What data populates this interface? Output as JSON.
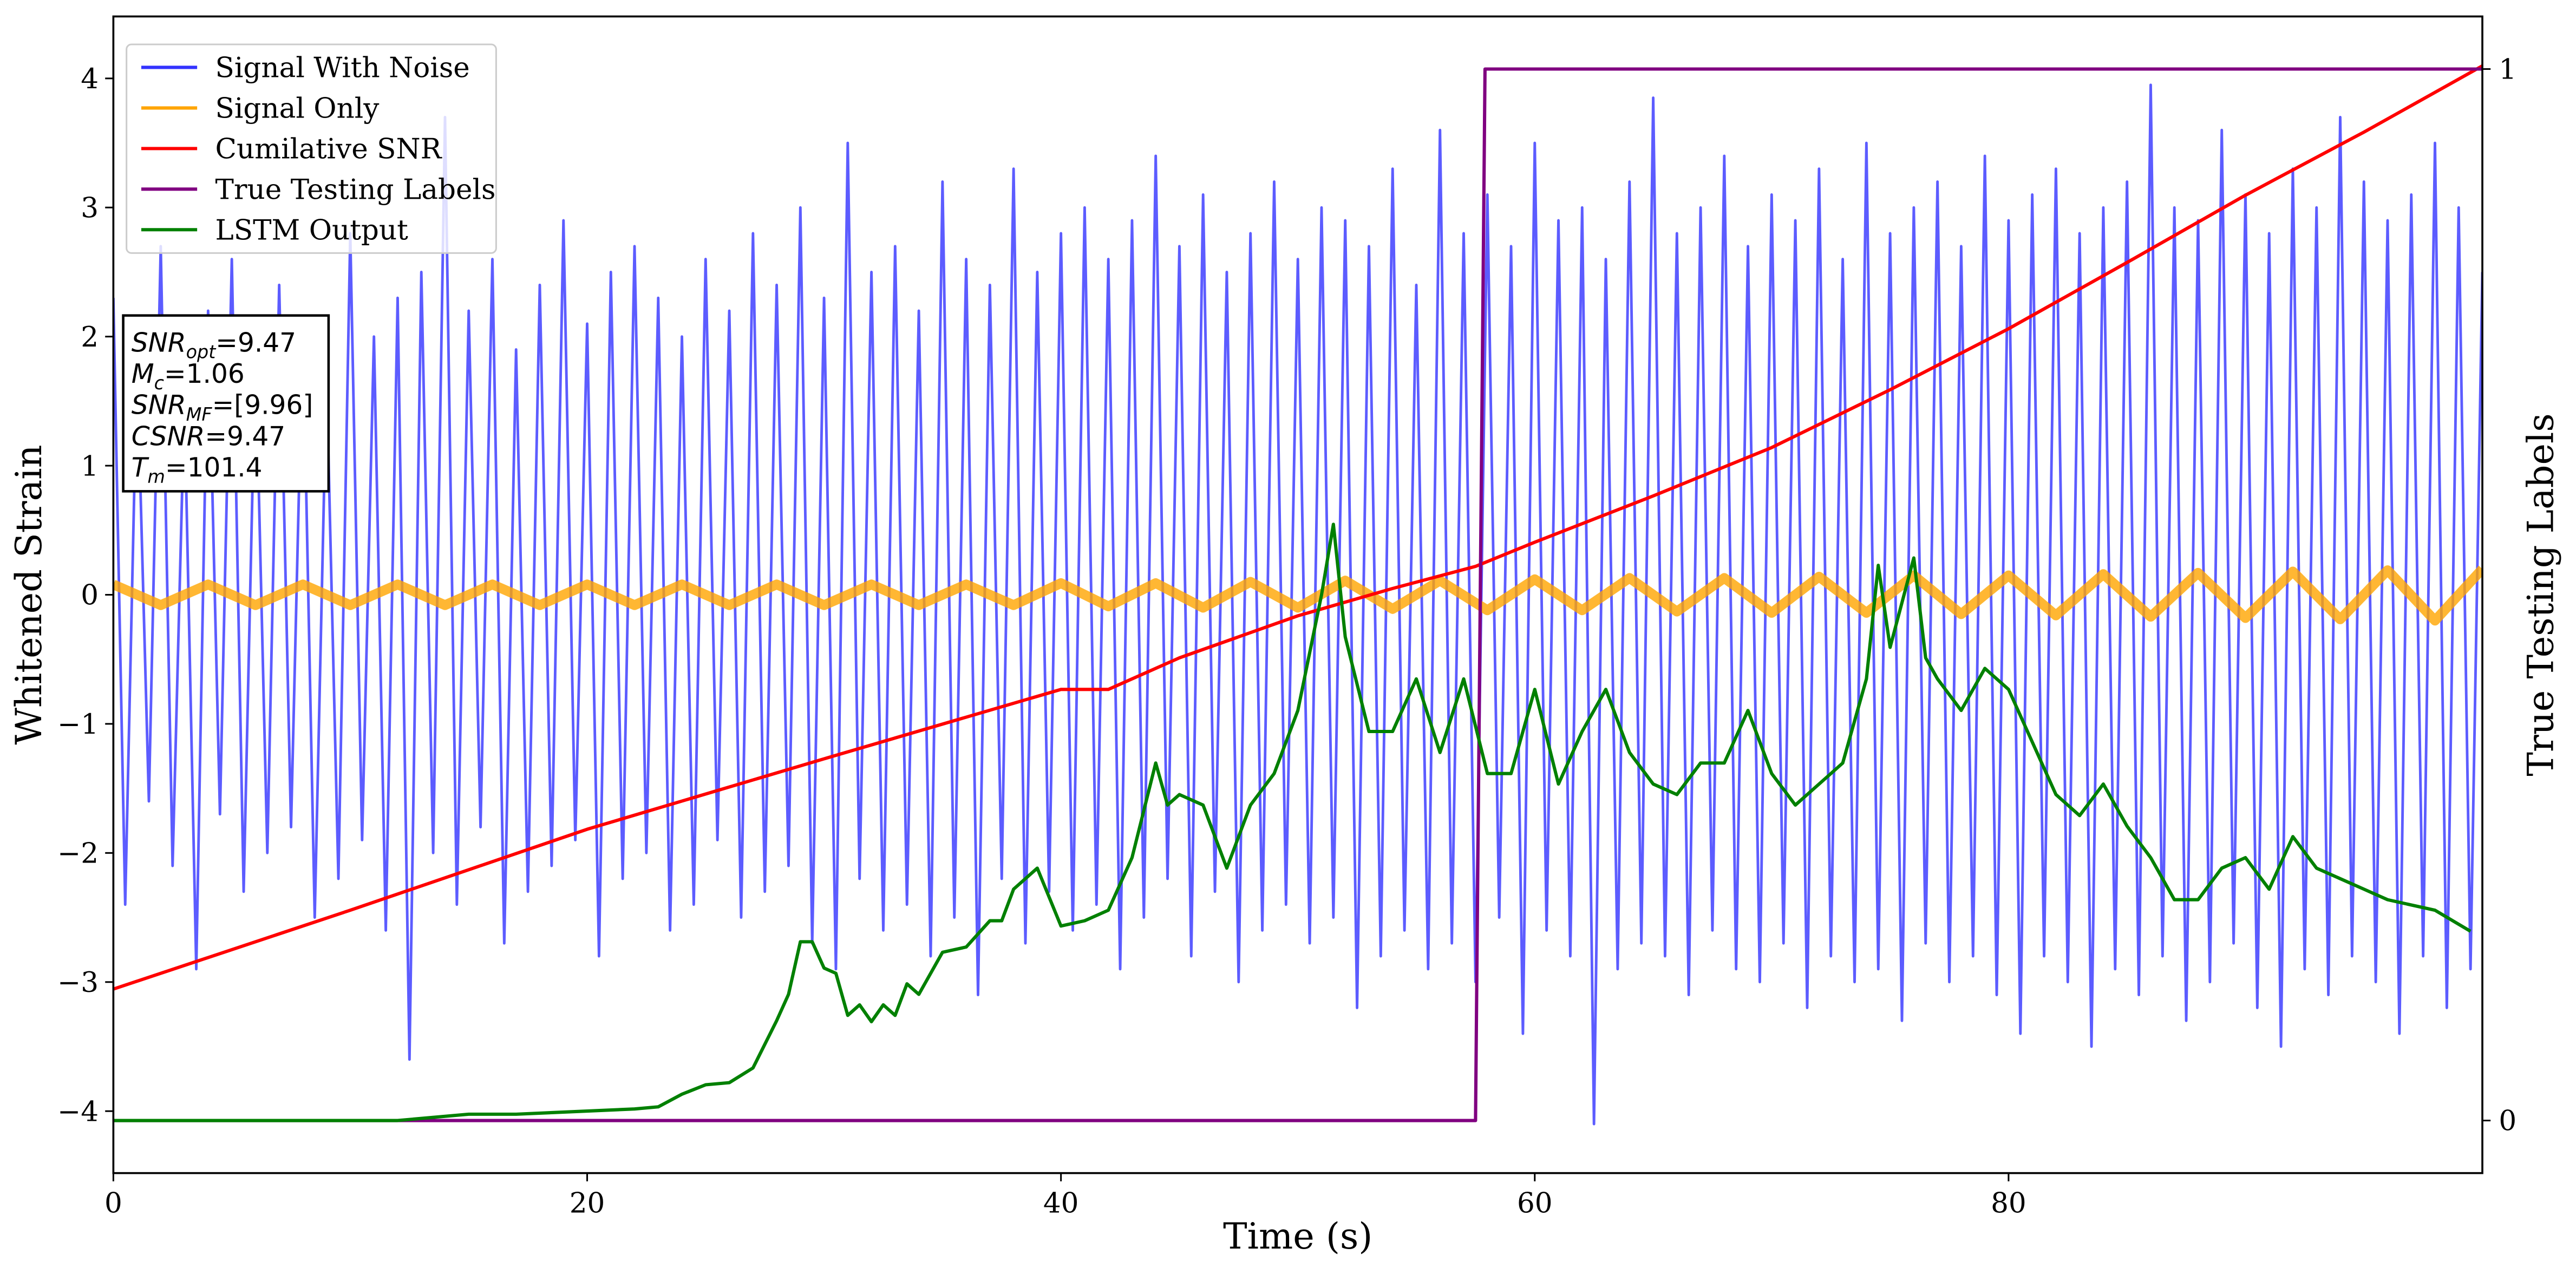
{
  "chart_data": {
    "type": "line",
    "xlabel": "Time (s)",
    "ylabel": "Whitened Strain",
    "y2label": "True Testing Labels",
    "xlim": [
      0,
      100
    ],
    "xticks": [
      0,
      20,
      40,
      60,
      80
    ],
    "ylim": [
      -4.48,
      4.48
    ],
    "yticks": [
      {
        "value": -4,
        "label": "−4"
      },
      {
        "value": -3,
        "label": "−3"
      },
      {
        "value": -2,
        "label": "−2"
      },
      {
        "value": -1,
        "label": "−1"
      },
      0,
      1,
      2,
      3,
      4
    ],
    "y2lim": [
      -0.05,
      1.05
    ],
    "y2ticks": [
      0,
      1
    ],
    "legend": "upper left",
    "annotation": [
      {
        "name": "SNR",
        "sub": "opt",
        "text": "=9.47"
      },
      {
        "name": "M",
        "sub": "c",
        "text": "=1.06"
      },
      {
        "name": "SNR",
        "sub": "MF",
        "text": "=[9.96]"
      },
      {
        "name": "CSNR",
        "sub": "",
        "text": "=9.47"
      },
      {
        "name": "T",
        "sub": "m",
        "text": "=101.4"
      }
    ],
    "series": [
      {
        "name": "Signal With Noise",
        "color": "#3333ff",
        "x": [
          0,
          0.5,
          1,
          1.5,
          2,
          2.5,
          3,
          3.5,
          4,
          4.5,
          5,
          5.5,
          6,
          6.5,
          7,
          7.5,
          8,
          8.5,
          9,
          9.5,
          10,
          10.5,
          11,
          11.5,
          12,
          12.5,
          13,
          13.5,
          14,
          14.5,
          15,
          15.5,
          16,
          16.5,
          17,
          17.5,
          18,
          18.5,
          19,
          19.5,
          20,
          20.5,
          21,
          21.5,
          22,
          22.5,
          23,
          23.5,
          24,
          24.5,
          25,
          25.5,
          26,
          26.5,
          27,
          27.5,
          28,
          28.5,
          29,
          29.5,
          30,
          30.5,
          31,
          31.5,
          32,
          32.5,
          33,
          33.5,
          34,
          34.5,
          35,
          35.5,
          36,
          36.5,
          37,
          37.5,
          38,
          38.5,
          39,
          39.5,
          40,
          40.5,
          41,
          41.5,
          42,
          42.5,
          43,
          43.5,
          44,
          44.5,
          45,
          45.5,
          46,
          46.5,
          47,
          47.5,
          48,
          48.5,
          49,
          49.5,
          50,
          50.5,
          51,
          51.5,
          52,
          52.5,
          53,
          53.5,
          54,
          54.5,
          55,
          55.5,
          56,
          56.5,
          57,
          57.5,
          58,
          58.5,
          59,
          59.5,
          60,
          60.5,
          61,
          61.5,
          62,
          62.5,
          63,
          63.5,
          64,
          64.5,
          65,
          65.5,
          66,
          66.5,
          67,
          67.5,
          68,
          68.5,
          69,
          69.5,
          70,
          70.5,
          71,
          71.5,
          72,
          72.5,
          73,
          73.5,
          74,
          74.5,
          75,
          75.5,
          76,
          76.5,
          77,
          77.5,
          78,
          78.5,
          79,
          79.5,
          80,
          80.5,
          81,
          81.5,
          82,
          82.5,
          83,
          83.5,
          84,
          84.5,
          85,
          85.5,
          86,
          86.5,
          87,
          87.5,
          88,
          88.5,
          89,
          89.5,
          90,
          90.5,
          91,
          91.5,
          92,
          92.5,
          93,
          93.5,
          94,
          94.5,
          95,
          95.5,
          96,
          96.5,
          97,
          97.5,
          98,
          98.5,
          99,
          99.5,
          100
        ],
        "values": [
          2.3,
          -2.4,
          1.8,
          -1.6,
          2.7,
          -2.1,
          1.5,
          -2.9,
          2.2,
          -1.7,
          2.6,
          -2.3,
          1.9,
          -2.0,
          2.4,
          -1.8,
          2.1,
          -2.5,
          1.7,
          -2.2,
          2.8,
          -1.9,
          2.0,
          -2.6,
          2.3,
          -3.6,
          2.5,
          -2.0,
          3.7,
          -2.4,
          2.2,
          -1.8,
          2.6,
          -2.7,
          1.9,
          -2.3,
          2.4,
          -2.1,
          2.9,
          -1.9,
          2.1,
          -2.8,
          2.5,
          -2.2,
          2.7,
          -2.0,
          2.3,
          -2.6,
          2.0,
          -2.4,
          2.6,
          -1.9,
          2.2,
          -2.5,
          2.8,
          -2.3,
          2.4,
          -2.1,
          3.0,
          -2.7,
          2.3,
          -2.9,
          3.5,
          -2.2,
          2.5,
          -2.6,
          2.7,
          -2.4,
          2.2,
          -2.8,
          3.2,
          -2.5,
          2.6,
          -3.1,
          2.4,
          -2.2,
          3.3,
          -2.7,
          2.5,
          -2.3,
          2.8,
          -2.6,
          3.0,
          -2.4,
          2.6,
          -2.9,
          2.9,
          -2.5,
          3.4,
          -2.2,
          2.7,
          -2.8,
          3.1,
          -2.3,
          2.5,
          -3.0,
          2.8,
          -2.6,
          3.2,
          -2.4,
          2.6,
          -2.7,
          3.0,
          -2.5,
          2.9,
          -3.2,
          2.7,
          -2.8,
          3.3,
          -2.6,
          2.4,
          -2.9,
          3.6,
          -2.7,
          2.8,
          -3.0,
          3.1,
          -2.5,
          2.7,
          -3.4,
          3.5,
          -2.6,
          2.9,
          -2.8,
          3.0,
          -4.1,
          2.6,
          -2.9,
          3.2,
          -2.7,
          3.85,
          -2.8,
          2.8,
          -3.1,
          3.0,
          -2.6,
          3.4,
          -2.9,
          2.7,
          -3.0,
          3.1,
          -2.7,
          2.9,
          -3.2,
          3.3,
          -2.8,
          2.6,
          -3.0,
          3.5,
          -2.9,
          2.8,
          -3.3,
          3.0,
          -2.7,
          3.2,
          -3.0,
          2.7,
          -2.8,
          3.4,
          -3.1,
          2.9,
          -3.4,
          3.1,
          -2.8,
          3.3,
          -3.0,
          2.8,
          -3.5,
          3.0,
          -2.9,
          3.2,
          -3.1,
          3.95,
          -2.8,
          3.0,
          -3.3,
          2.9,
          -3.0,
          3.6,
          -2.7,
          3.1,
          -3.2,
          2.8,
          -3.5,
          3.3,
          -2.9,
          3.0,
          -3.1,
          3.7,
          -2.8,
          3.2,
          -3.0,
          2.9,
          -3.4,
          3.1,
          -2.8,
          3.5,
          -3.2,
          3.0,
          -2.9,
          2.5
        ]
      },
      {
        "name": "Signal Only",
        "color": "orange",
        "x": [
          0,
          2,
          4,
          6,
          8,
          10,
          12,
          14,
          16,
          18,
          20,
          22,
          24,
          26,
          28,
          30,
          32,
          34,
          36,
          38,
          40,
          42,
          44,
          46,
          48,
          50,
          52,
          54,
          56,
          58,
          60,
          62,
          64,
          66,
          68,
          70,
          72,
          74,
          76,
          78,
          80,
          82,
          84,
          86,
          88,
          90,
          92,
          94,
          96,
          98,
          100
        ],
        "values": [
          0.08,
          -0.08,
          0.08,
          -0.08,
          0.08,
          -0.08,
          0.08,
          -0.08,
          0.08,
          -0.08,
          0.08,
          -0.08,
          0.08,
          -0.08,
          0.08,
          -0.08,
          0.08,
          -0.08,
          0.08,
          -0.08,
          0.09,
          -0.09,
          0.09,
          -0.1,
          0.1,
          -0.1,
          0.11,
          -0.11,
          0.11,
          -0.12,
          0.12,
          -0.12,
          0.13,
          -0.13,
          0.13,
          -0.14,
          0.14,
          -0.14,
          0.15,
          -0.15,
          0.15,
          -0.16,
          0.16,
          -0.17,
          0.17,
          -0.18,
          0.18,
          -0.19,
          0.19,
          -0.2,
          0.2
        ]
      },
      {
        "name": "Cumilative SNR",
        "color": "red",
        "axis": "y2",
        "x": [
          0,
          10,
          20,
          30,
          40,
          42,
          45,
          50,
          54,
          57.5,
          60,
          65,
          70,
          75,
          80,
          85,
          90,
          95,
          100
        ],
        "values": [
          0.125,
          0.2,
          0.277,
          0.344,
          0.41,
          0.41,
          0.44,
          0.48,
          0.506,
          0.527,
          0.55,
          0.594,
          0.64,
          0.695,
          0.753,
          0.816,
          0.88,
          0.94,
          1.003
        ]
      },
      {
        "name": "True Testing Labels",
        "color": "purple",
        "axis": "y2",
        "x": [
          0,
          57.5,
          57.9,
          100
        ],
        "values": [
          0,
          0,
          1,
          1
        ]
      },
      {
        "name": "LSTM Output",
        "color": "green",
        "axis": "y2",
        "x": [
          0,
          12,
          15,
          17,
          20,
          22,
          23,
          24,
          25,
          26,
          27,
          28,
          28.5,
          29,
          29.5,
          30,
          30.5,
          31,
          31.5,
          32,
          32.5,
          33,
          33.5,
          34,
          35,
          36,
          37,
          37.5,
          38,
          39,
          40,
          41,
          42,
          43,
          44,
          44.5,
          45,
          46,
          47,
          48,
          49,
          50,
          51,
          51.5,
          52,
          53,
          54,
          55,
          56,
          57,
          58,
          59,
          60,
          61,
          62,
          63,
          64,
          65,
          66,
          67,
          68,
          69,
          70,
          71,
          72,
          73,
          74,
          74.5,
          75,
          76,
          76.5,
          77,
          78,
          79,
          80,
          81,
          82,
          83,
          84,
          85,
          86,
          87,
          88,
          89,
          90,
          91,
          92,
          93,
          95,
          96,
          98,
          99.5
        ],
        "values": [
          0,
          0,
          0.006,
          0.006,
          0.009,
          0.011,
          0.013,
          0.025,
          0.034,
          0.036,
          0.05,
          0.095,
          0.12,
          0.17,
          0.17,
          0.145,
          0.14,
          0.1,
          0.11,
          0.094,
          0.11,
          0.1,
          0.13,
          0.12,
          0.16,
          0.165,
          0.19,
          0.19,
          0.22,
          0.24,
          0.185,
          0.19,
          0.2,
          0.25,
          0.34,
          0.3,
          0.31,
          0.3,
          0.24,
          0.3,
          0.33,
          0.39,
          0.5,
          0.567,
          0.46,
          0.37,
          0.37,
          0.42,
          0.35,
          0.42,
          0.33,
          0.33,
          0.41,
          0.32,
          0.37,
          0.41,
          0.35,
          0.32,
          0.31,
          0.34,
          0.34,
          0.39,
          0.33,
          0.3,
          0.32,
          0.34,
          0.42,
          0.528,
          0.45,
          0.535,
          0.44,
          0.42,
          0.39,
          0.43,
          0.41,
          0.36,
          0.31,
          0.29,
          0.32,
          0.28,
          0.25,
          0.21,
          0.21,
          0.24,
          0.25,
          0.22,
          0.27,
          0.24,
          0.22,
          0.21,
          0.2,
          0.18
        ]
      }
    ]
  }
}
